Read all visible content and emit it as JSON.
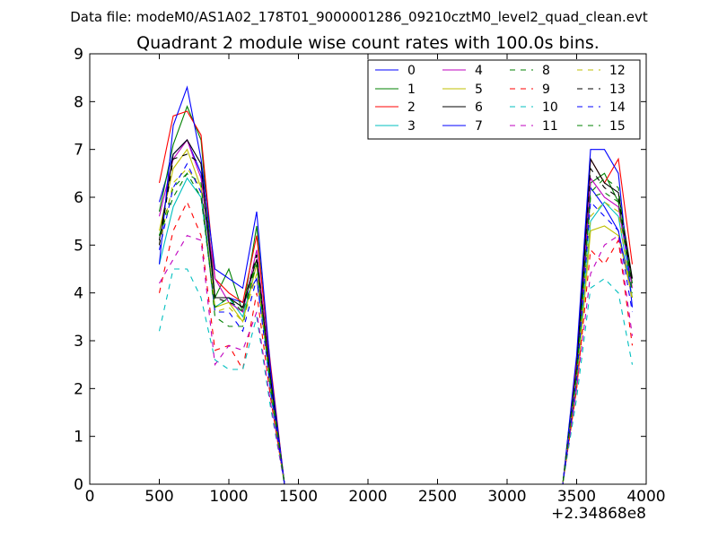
{
  "chart_data": {
    "type": "line",
    "suptitle": "Data file: modeM0/AS1A02_178T01_9000001286_09210cztM0_level2_quad_clean.evt",
    "title": "Quadrant 2 module wise count rates with 100.0s bins.",
    "xlabel": "",
    "ylabel": "",
    "x_offset_label": "+2.34868e8",
    "xlim": [
      0,
      4000
    ],
    "ylim": [
      0,
      9
    ],
    "xticks": [
      0,
      500,
      1000,
      1500,
      2000,
      2500,
      3000,
      3500,
      4000
    ],
    "yticks": [
      0,
      1,
      2,
      3,
      4,
      5,
      6,
      7,
      8,
      9
    ],
    "grid": false,
    "legend_position": "top-right",
    "x": [
      500,
      600,
      700,
      800,
      900,
      1000,
      1100,
      1200,
      1300,
      1400,
      1500,
      3300,
      3400,
      3500,
      3600,
      3700,
      3800,
      3900
    ],
    "series": [
      {
        "name": "0",
        "color": "#0000ff",
        "dash": "solid",
        "values": [
          5.9,
          6.9,
          7.2,
          6.5,
          3.9,
          3.9,
          3.8,
          4.3,
          2.2,
          0,
          0,
          0,
          0,
          2.2,
          6.2,
          5.8,
          5.3,
          3.9
        ]
      },
      {
        "name": "1",
        "color": "#008000",
        "dash": "solid",
        "values": [
          5.7,
          7.1,
          7.9,
          7.2,
          3.9,
          4.5,
          3.6,
          5.4,
          2.3,
          0,
          0,
          0,
          0,
          2.6,
          6.3,
          6.5,
          5.9,
          4.2
        ]
      },
      {
        "name": "2",
        "color": "#ff0000",
        "dash": "solid",
        "values": [
          6.3,
          7.7,
          7.8,
          7.3,
          4.3,
          4.0,
          3.8,
          5.2,
          2.5,
          0,
          0,
          0,
          0,
          2.6,
          6.8,
          6.3,
          6.8,
          4.6
        ]
      },
      {
        "name": "3",
        "color": "#00bfbf",
        "dash": "solid",
        "values": [
          4.6,
          5.8,
          6.4,
          6.0,
          3.7,
          3.9,
          3.5,
          4.6,
          1.9,
          0,
          0,
          0,
          0,
          2.2,
          5.5,
          5.9,
          5.6,
          3.9
        ]
      },
      {
        "name": "4",
        "color": "#bf00bf",
        "dash": "solid",
        "values": [
          5.6,
          6.8,
          7.2,
          6.4,
          4.3,
          3.8,
          3.6,
          4.9,
          2.3,
          0,
          0,
          0,
          0,
          2.3,
          6.4,
          6.0,
          5.8,
          4.1
        ]
      },
      {
        "name": "5",
        "color": "#bfbf00",
        "dash": "solid",
        "values": [
          5.3,
          6.6,
          7.0,
          6.2,
          3.7,
          3.8,
          3.4,
          4.6,
          2.1,
          0,
          0,
          0,
          0,
          2.0,
          5.3,
          5.4,
          5.2,
          3.9
        ]
      },
      {
        "name": "6",
        "color": "#000000",
        "dash": "solid",
        "values": [
          5.1,
          6.9,
          7.2,
          6.7,
          3.9,
          3.9,
          3.7,
          4.7,
          2.2,
          0,
          0,
          0,
          0,
          2.4,
          6.8,
          6.3,
          6.1,
          4.3
        ]
      },
      {
        "name": "7",
        "color": "#0000ff",
        "dash": "solid",
        "values": [
          4.6,
          7.5,
          8.3,
          6.8,
          4.5,
          4.3,
          4.1,
          5.7,
          2.4,
          0,
          0,
          0,
          0,
          2.7,
          7.0,
          7.0,
          6.5,
          3.7
        ]
      },
      {
        "name": "8",
        "color": "#008000",
        "dash": "dashed",
        "values": [
          5.2,
          6.2,
          6.5,
          6.3,
          3.5,
          3.3,
          3.3,
          4.8,
          2.0,
          0,
          0,
          0,
          0,
          2.4,
          6.1,
          6.4,
          6.2,
          4.0
        ]
      },
      {
        "name": "9",
        "color": "#ff0000",
        "dash": "dashed",
        "values": [
          4.0,
          5.3,
          5.9,
          5.2,
          2.8,
          2.9,
          2.4,
          4.0,
          1.8,
          0,
          0,
          0,
          0,
          2.0,
          4.9,
          4.6,
          5.1,
          2.9
        ]
      },
      {
        "name": "10",
        "color": "#00bfbf",
        "dash": "dashed",
        "values": [
          3.2,
          4.5,
          4.5,
          3.9,
          2.6,
          2.4,
          2.4,
          3.5,
          1.6,
          0,
          0,
          0,
          0,
          1.8,
          4.1,
          4.3,
          4.0,
          2.5
        ]
      },
      {
        "name": "11",
        "color": "#bf00bf",
        "dash": "dashed",
        "values": [
          4.2,
          4.7,
          5.2,
          5.1,
          2.5,
          2.9,
          2.8,
          3.6,
          1.7,
          0,
          0,
          0,
          0,
          2.0,
          4.4,
          5.0,
          5.2,
          3.1
        ]
      },
      {
        "name": "12",
        "color": "#bfbf00",
        "dash": "dashed",
        "values": [
          5.0,
          6.3,
          6.6,
          6.2,
          3.6,
          3.7,
          3.4,
          4.4,
          2.0,
          0,
          0,
          0,
          0,
          2.3,
          5.6,
          5.9,
          5.7,
          3.8
        ]
      },
      {
        "name": "13",
        "color": "#000000",
        "dash": "dashed",
        "values": [
          5.0,
          6.8,
          6.9,
          6.7,
          3.9,
          3.8,
          3.7,
          4.8,
          2.2,
          0,
          0,
          0,
          0,
          2.4,
          6.6,
          6.2,
          6.0,
          4.2
        ]
      },
      {
        "name": "14",
        "color": "#0000ff",
        "dash": "dashed",
        "values": [
          4.9,
          6.2,
          6.7,
          6.1,
          3.6,
          3.6,
          3.2,
          4.3,
          2.0,
          0,
          0,
          0,
          0,
          2.2,
          5.9,
          5.6,
          5.3,
          3.6
        ]
      },
      {
        "name": "15",
        "color": "#008000",
        "dash": "dashed",
        "values": [
          5.2,
          6.0,
          6.5,
          6.0,
          3.7,
          3.9,
          3.6,
          4.6,
          2.1,
          0,
          0,
          0,
          0,
          2.3,
          6.0,
          6.1,
          5.9,
          4.0
        ]
      }
    ]
  }
}
